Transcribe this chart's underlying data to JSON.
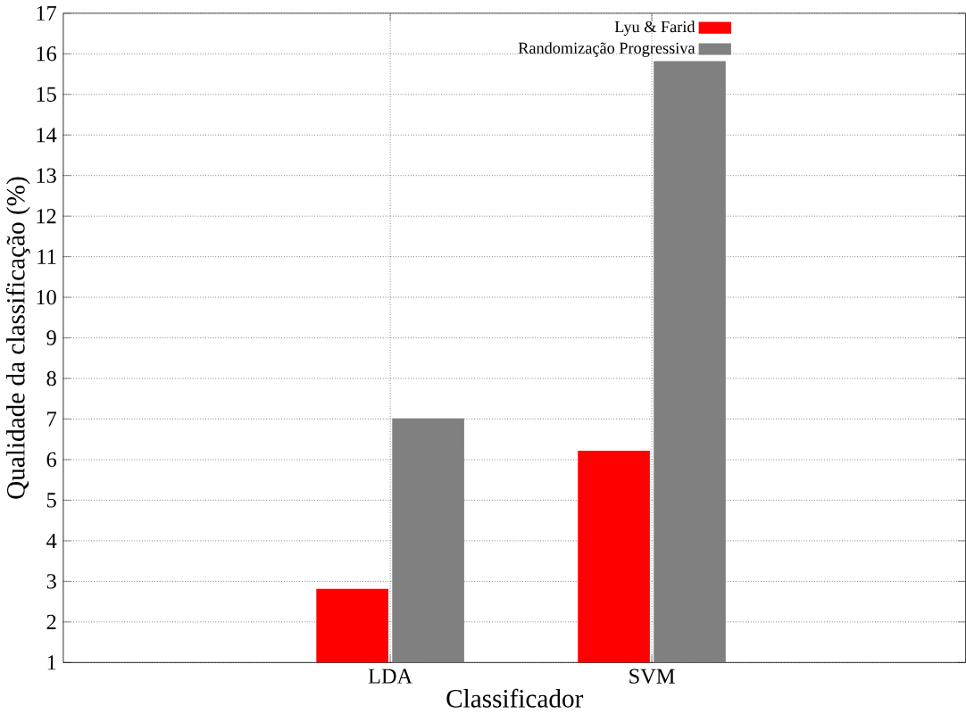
{
  "chart_data": {
    "type": "bar",
    "xlabel": "Classificador",
    "ylabel": "Qualidade da classificação (%)",
    "categories": [
      "LDA",
      "SVM"
    ],
    "series": [
      {
        "name": "Lyu & Farid",
        "color": "#ff0000",
        "values": [
          2.8,
          6.2
        ]
      },
      {
        "name": "Randomização Progressiva",
        "color": "#808080",
        "values": [
          7.0,
          15.8
        ]
      }
    ],
    "ylim": [
      1,
      17
    ],
    "yticks": [
      1,
      2,
      3,
      4,
      5,
      6,
      7,
      8,
      9,
      10,
      11,
      12,
      13,
      14,
      15,
      16,
      17
    ],
    "grid": true,
    "legend": "top"
  }
}
